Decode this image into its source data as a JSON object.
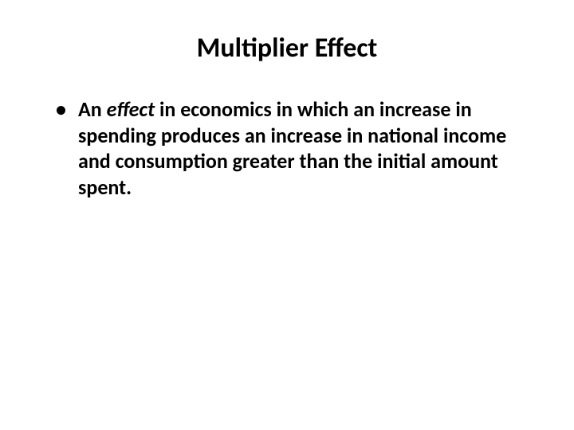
{
  "slide": {
    "title": "Multiplier Effect",
    "title_fontsize": 34,
    "title_fontweight": 700,
    "bullet": {
      "prefix": "An ",
      "emphasis": "effect",
      "rest": " in economics in which an increase in spending produces an increase in national income and consumption greater than the initial amount spent.",
      "fontsize": 26,
      "fontweight": 700
    },
    "background_color": "#ffffff",
    "text_color": "#000000"
  }
}
